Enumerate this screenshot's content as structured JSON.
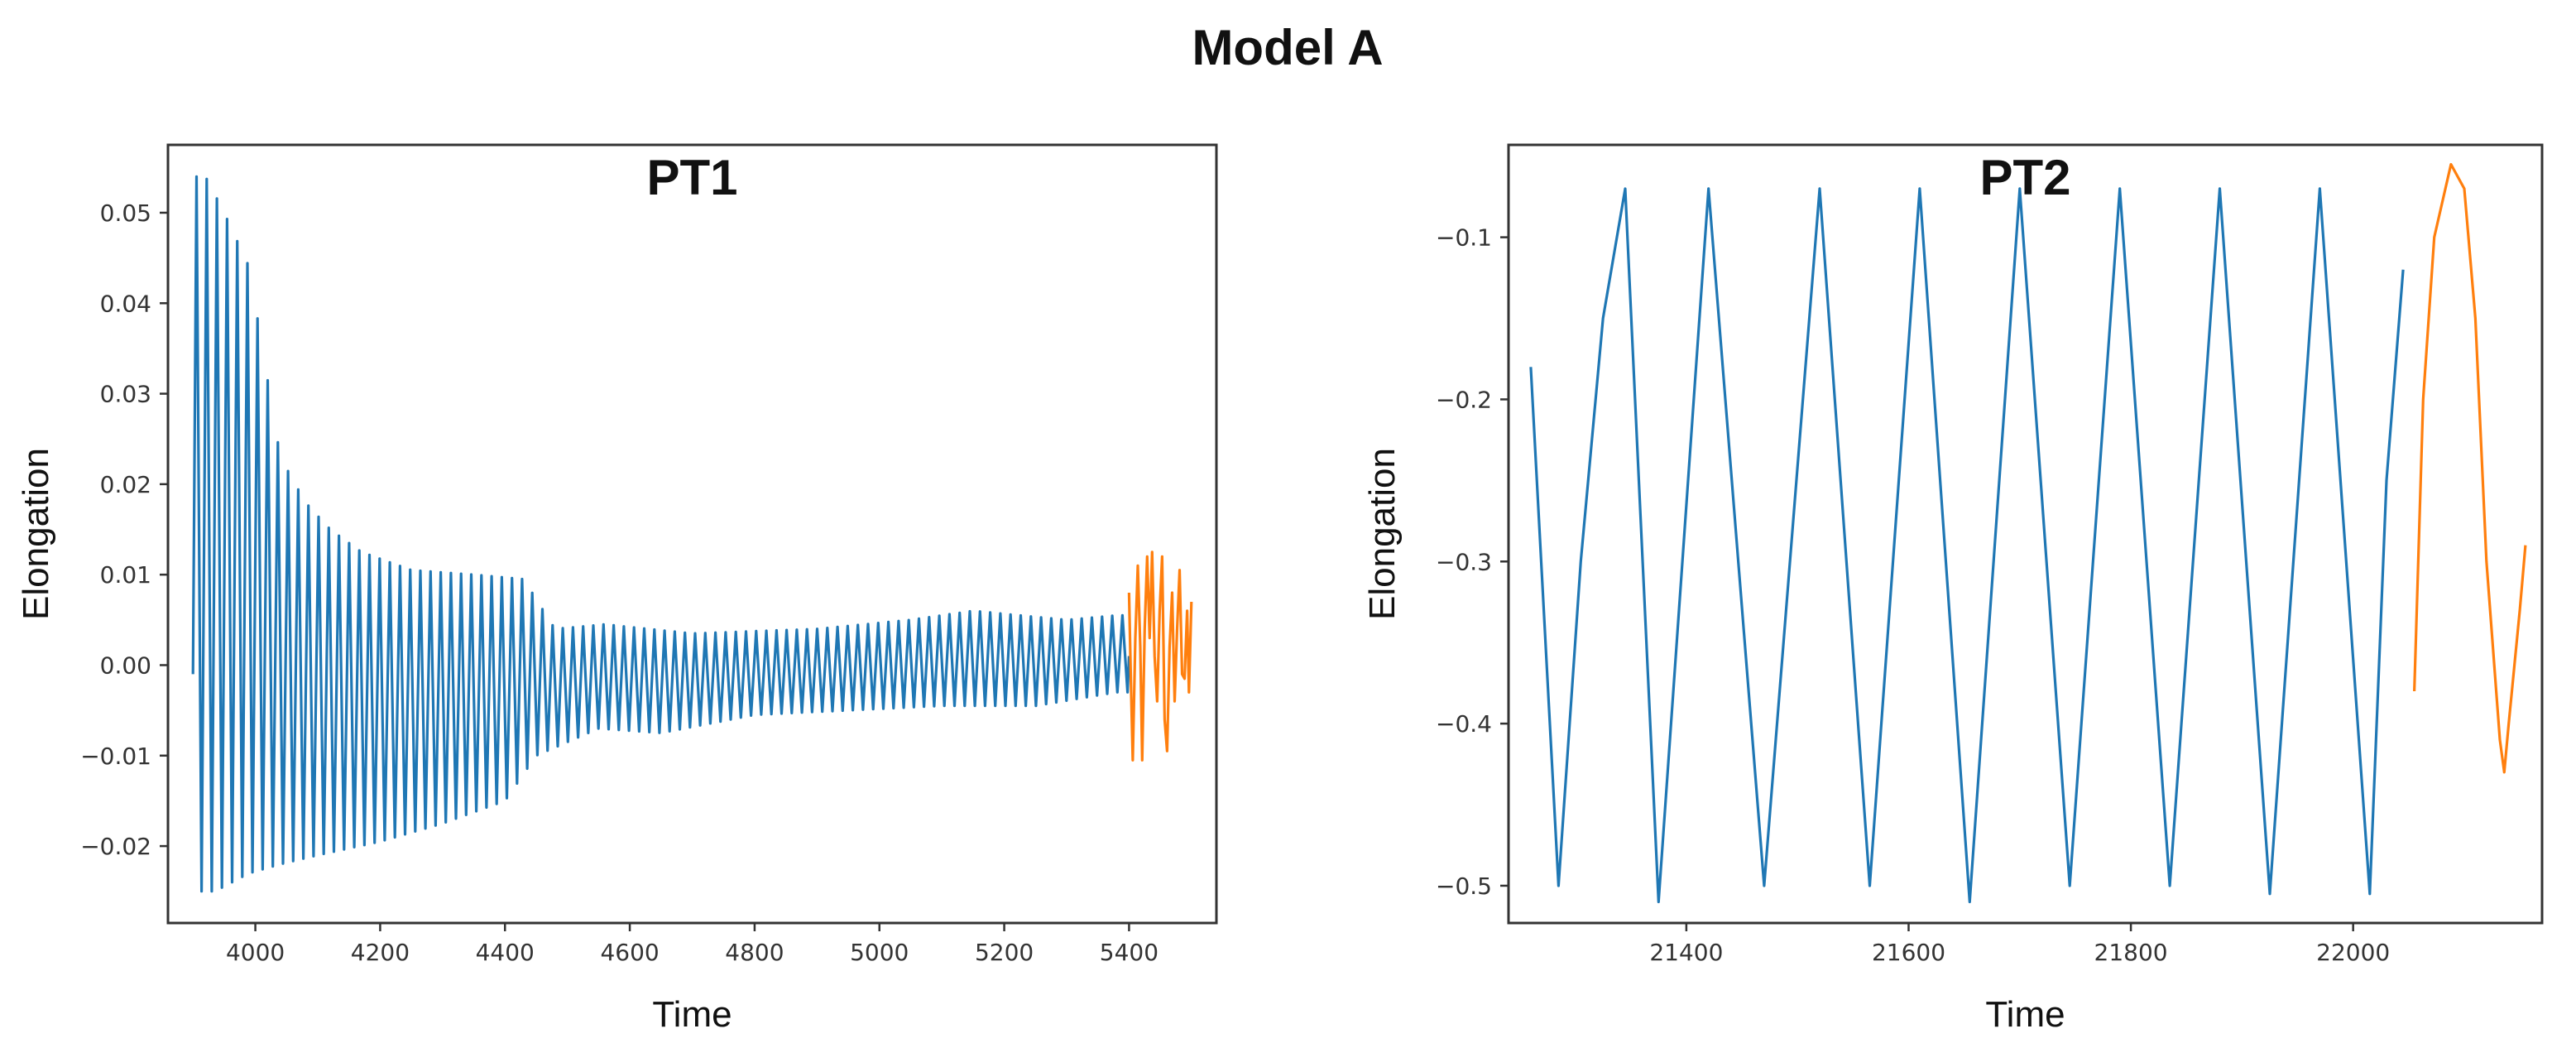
{
  "figure": {
    "title": "Model A"
  },
  "chart_data": [
    {
      "type": "line",
      "title": "PT1",
      "xlabel": "Time",
      "ylabel": "Elongation",
      "xlim": [
        3860,
        5540
      ],
      "ylim": [
        -0.0285,
        0.0575
      ],
      "xticks": [
        4000,
        4200,
        4400,
        4600,
        4800,
        5000,
        5200,
        5400
      ],
      "xtick_labels": [
        "4000",
        "4200",
        "4400",
        "4600",
        "4800",
        "5000",
        "5200",
        "5400"
      ],
      "yticks": [
        -0.02,
        -0.01,
        0.0,
        0.01,
        0.02,
        0.03,
        0.04,
        0.05
      ],
      "ytick_labels": [
        "−0.02",
        "−0.01",
        "0.00",
        "0.01",
        "0.02",
        "0.03",
        "0.04",
        "0.05"
      ],
      "grid": false,
      "legend": "none",
      "series": [
        {
          "color": "#1f77b4",
          "sampled": true,
          "oscillation": {
            "x_start": 3900,
            "x_end": 5400,
            "start_value": -0.001,
            "end_value": 0.001,
            "peaks": [
              {
                "x": 3920,
                "y": 0.054
              },
              {
                "x": 3950,
                "y": 0.05
              },
              {
                "x": 3990,
                "y": 0.044
              },
              {
                "x": 4040,
                "y": 0.023
              },
              {
                "x": 4080,
                "y": 0.018
              },
              {
                "x": 4120,
                "y": 0.015
              },
              {
                "x": 4170,
                "y": 0.0125
              },
              {
                "x": 4250,
                "y": 0.0105
              },
              {
                "x": 4350,
                "y": 0.01
              },
              {
                "x": 4430,
                "y": 0.0095
              },
              {
                "x": 4480,
                "y": 0.004
              },
              {
                "x": 4560,
                "y": 0.0045
              },
              {
                "x": 4700,
                "y": 0.0035
              },
              {
                "x": 4900,
                "y": 0.004
              },
              {
                "x": 5050,
                "y": 0.005
              },
              {
                "x": 5150,
                "y": 0.006
              },
              {
                "x": 5300,
                "y": 0.005
              },
              {
                "x": 5380,
                "y": 0.0055
              }
            ],
            "troughs": [
              {
                "x": 3935,
                "y": -0.025
              },
              {
                "x": 3990,
                "y": -0.023
              },
              {
                "x": 4040,
                "y": -0.022
              },
              {
                "x": 4100,
                "y": -0.021
              },
              {
                "x": 4200,
                "y": -0.0195
              },
              {
                "x": 4300,
                "y": -0.0175
              },
              {
                "x": 4400,
                "y": -0.015
              },
              {
                "x": 4450,
                "y": -0.01
              },
              {
                "x": 4550,
                "y": -0.007
              },
              {
                "x": 4650,
                "y": -0.0075
              },
              {
                "x": 4800,
                "y": -0.0055
              },
              {
                "x": 4950,
                "y": -0.005
              },
              {
                "x": 5100,
                "y": -0.0045
              },
              {
                "x": 5250,
                "y": -0.0045
              },
              {
                "x": 5380,
                "y": -0.003
              }
            ]
          }
        },
        {
          "color": "#ff7f0e",
          "sampled": true,
          "points": [
            [
              5400,
              0.008
            ],
            [
              5403,
              -0.002
            ],
            [
              5406,
              -0.0105
            ],
            [
              5410,
              0.003
            ],
            [
              5414,
              0.011
            ],
            [
              5418,
              0.002
            ],
            [
              5421,
              -0.0105
            ],
            [
              5425,
              0.004
            ],
            [
              5429,
              0.012
            ],
            [
              5433,
              0.003
            ],
            [
              5437,
              0.0125
            ],
            [
              5441,
              0.001
            ],
            [
              5445,
              -0.004
            ],
            [
              5449,
              0.006
            ],
            [
              5453,
              0.012
            ],
            [
              5457,
              -0.006
            ],
            [
              5461,
              -0.0095
            ],
            [
              5465,
              0.002
            ],
            [
              5469,
              0.008
            ],
            [
              5473,
              -0.004
            ],
            [
              5477,
              0.004
            ],
            [
              5481,
              0.0105
            ],
            [
              5485,
              -0.001
            ],
            [
              5489,
              -0.0015
            ],
            [
              5493,
              0.006
            ],
            [
              5496,
              -0.003
            ],
            [
              5500,
              0.007
            ]
          ]
        }
      ]
    },
    {
      "type": "line",
      "title": "PT2",
      "xlabel": "Time",
      "ylabel": "Elongation",
      "xlim": [
        21240,
        22170
      ],
      "ylim": [
        -0.523,
        -0.043
      ],
      "xticks": [
        21400,
        21600,
        21800,
        22000
      ],
      "xtick_labels": [
        "21400",
        "21600",
        "21800",
        "22000"
      ],
      "yticks": [
        -0.5,
        -0.4,
        -0.3,
        -0.2,
        -0.1
      ],
      "ytick_labels": [
        "−0.5",
        "−0.4",
        "−0.3",
        "−0.2",
        "−0.1"
      ],
      "grid": false,
      "legend": "none",
      "series": [
        {
          "color": "#1f77b4",
          "sampled": true,
          "points": [
            [
              21260,
              -0.18
            ],
            [
              21285,
              -0.5
            ],
            [
              21305,
              -0.3
            ],
            [
              21325,
              -0.15
            ],
            [
              21345,
              -0.07
            ],
            [
              21375,
              -0.51
            ],
            [
              21420,
              -0.07
            ],
            [
              21470,
              -0.5
            ],
            [
              21520,
              -0.07
            ],
            [
              21565,
              -0.5
            ],
            [
              21610,
              -0.07
            ],
            [
              21655,
              -0.51
            ],
            [
              21700,
              -0.07
            ],
            [
              21745,
              -0.5
            ],
            [
              21790,
              -0.07
            ],
            [
              21835,
              -0.5
            ],
            [
              21880,
              -0.07
            ],
            [
              21925,
              -0.505
            ],
            [
              21970,
              -0.07
            ],
            [
              22015,
              -0.505
            ],
            [
              22030,
              -0.25
            ],
            [
              22045,
              -0.12
            ]
          ]
        },
        {
          "color": "#ff7f0e",
          "sampled": true,
          "points": [
            [
              22055,
              -0.38
            ],
            [
              22063,
              -0.2
            ],
            [
              22073,
              -0.1
            ],
            [
              22088,
              -0.055
            ],
            [
              22100,
              -0.07
            ],
            [
              22110,
              -0.15
            ],
            [
              22120,
              -0.3
            ],
            [
              22132,
              -0.41
            ],
            [
              22136,
              -0.43
            ],
            [
              22140,
              -0.4
            ],
            [
              22150,
              -0.33
            ],
            [
              22155,
              -0.29
            ]
          ]
        }
      ]
    }
  ]
}
